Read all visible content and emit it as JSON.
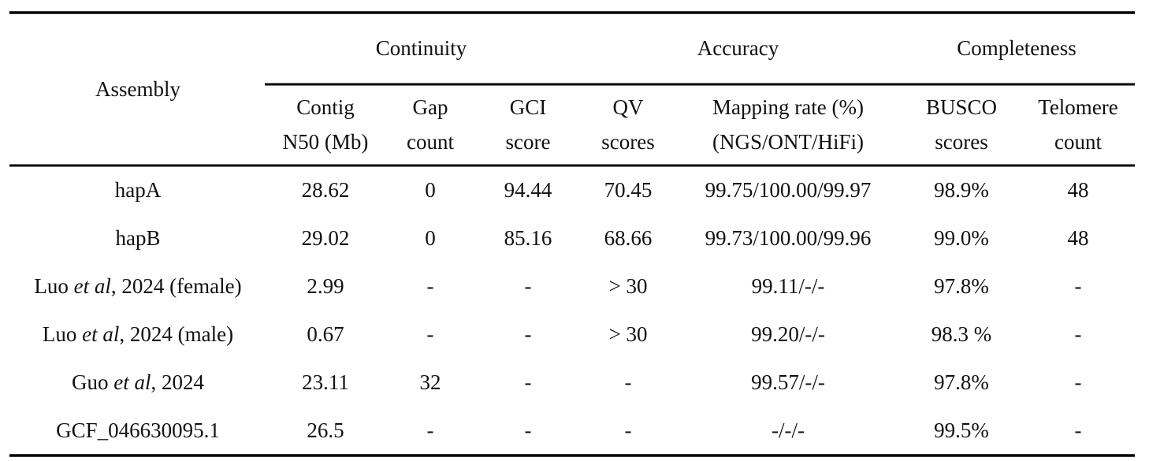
{
  "table": {
    "groups": [
      {
        "label": "Continuity",
        "from": 1,
        "to": 4
      },
      {
        "label": "Accuracy",
        "from": 4,
        "to": 6
      },
      {
        "label": "Completeness",
        "from": 6,
        "to": 8
      }
    ],
    "columns": [
      [
        "Assembly"
      ],
      [
        "Contig",
        "N50 (Mb)"
      ],
      [
        "Gap",
        "count"
      ],
      [
        "GCI",
        "score"
      ],
      [
        "QV",
        "scores"
      ],
      [
        "Mapping rate (%)",
        "(NGS/ONT/HiFi)"
      ],
      [
        "BUSCO",
        "scores"
      ],
      [
        "Telomere",
        "count"
      ]
    ],
    "rows": [
      [
        [
          "hapA"
        ],
        "28.62",
        "0",
        "94.44",
        "70.45",
        "99.75/100.00/99.97",
        "98.9%",
        "48"
      ],
      [
        [
          "hapB"
        ],
        "29.02",
        "0",
        "85.16",
        "68.66",
        "99.73/100.00/99.96",
        "99.0%",
        "48"
      ],
      [
        [
          "Luo ",
          "et al",
          ", 2024 (female)"
        ],
        "2.99",
        "-",
        "-",
        "> 30",
        "99.11/-/-",
        "97.8%",
        "-"
      ],
      [
        [
          "Luo ",
          "et al",
          ", 2024 (male)"
        ],
        "0.67",
        "-",
        "-",
        "> 30",
        "99.20/-/-",
        "98.3 %",
        "-"
      ],
      [
        [
          "Guo ",
          "et al",
          ", 2024"
        ],
        "23.11",
        "32",
        "-",
        "-",
        "99.57/-/-",
        "97.8%",
        "-"
      ],
      [
        [
          "GCF_046630095.1"
        ],
        "26.5",
        "-",
        "-",
        "-",
        "-/-/-",
        "99.5%",
        "-"
      ]
    ]
  }
}
